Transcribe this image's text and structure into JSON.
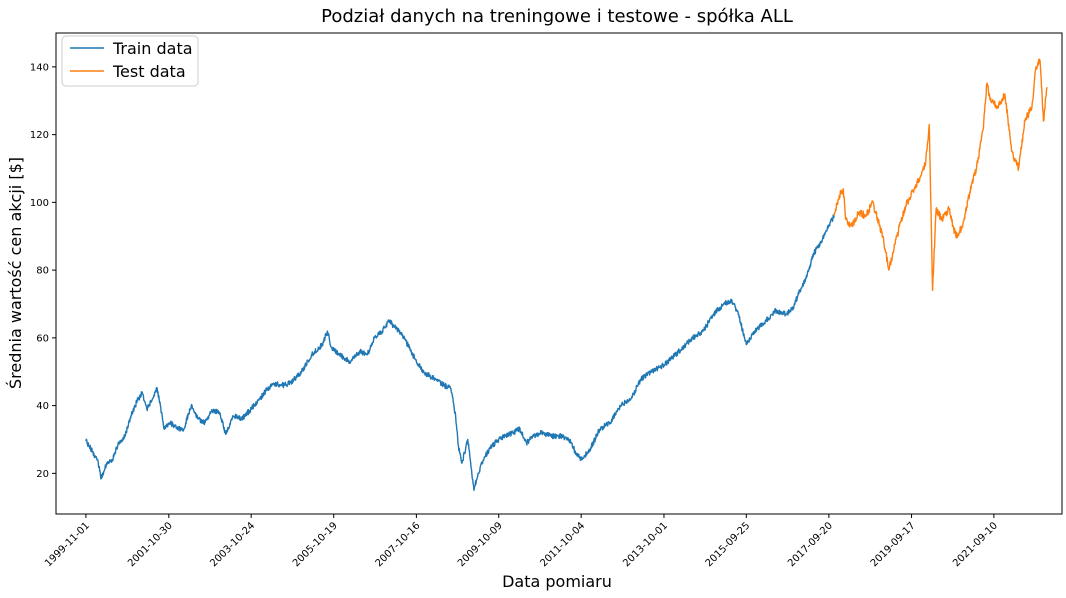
{
  "chart_data": {
    "type": "line",
    "title": "Podział danych na treningowe i testowe - spółka ALL",
    "xlabel": "Data pomiaru",
    "ylabel": "Średnia wartość cen akcji [$]",
    "x_ticks": [
      "1999-11-01",
      "2001-10-30",
      "2003-10-24",
      "2005-10-19",
      "2007-10-16",
      "2009-10-09",
      "2011-10-04",
      "2013-10-01",
      "2015-09-25",
      "2017-09-20",
      "2019-09-17",
      "2021-09-10"
    ],
    "y_ticks": [
      20,
      40,
      60,
      80,
      100,
      120,
      140
    ],
    "ylim": [
      8,
      150
    ],
    "xlim": [
      "1999-02-11",
      "2023-05-02"
    ],
    "grid": false,
    "legend_position": "top-left",
    "series": [
      {
        "name": "Train data",
        "color": "#1f77b4",
        "points": [
          [
            "1999-11-01",
            29.5
          ],
          [
            "1999-12-20",
            27.0
          ],
          [
            "2000-02-10",
            24.0
          ],
          [
            "2000-03-15",
            18.5
          ],
          [
            "2000-05-01",
            23.0
          ],
          [
            "2000-06-20",
            24.0
          ],
          [
            "2000-08-15",
            29.0
          ],
          [
            "2000-10-10",
            31.0
          ],
          [
            "2000-12-01",
            37.0
          ],
          [
            "2001-01-20",
            41.0
          ],
          [
            "2001-03-10",
            44.0
          ],
          [
            "2001-04-20",
            39.0
          ],
          [
            "2001-06-10",
            42.0
          ],
          [
            "2001-07-20",
            45.0
          ],
          [
            "2001-09-20",
            33.0
          ],
          [
            "2001-11-10",
            35.0
          ],
          [
            "2002-01-10",
            33.5
          ],
          [
            "2002-03-10",
            33.0
          ],
          [
            "2002-05-15",
            40.0
          ],
          [
            "2002-07-15",
            36.0
          ],
          [
            "2002-09-15",
            35.0
          ],
          [
            "2002-11-15",
            38.5
          ],
          [
            "2003-01-20",
            38.0
          ],
          [
            "2003-03-15",
            31.5
          ],
          [
            "2003-05-15",
            37.0
          ],
          [
            "2003-08-01",
            36.0
          ],
          [
            "2003-10-24",
            39.0
          ],
          [
            "2004-01-10",
            42.0
          ],
          [
            "2004-03-15",
            45.0
          ],
          [
            "2004-05-15",
            46.5
          ],
          [
            "2004-08-10",
            46.0
          ],
          [
            "2004-10-10",
            47.0
          ],
          [
            "2005-01-10",
            50.0
          ],
          [
            "2005-04-10",
            55.0
          ],
          [
            "2005-07-10",
            58.0
          ],
          [
            "2005-08-25",
            62.0
          ],
          [
            "2005-10-01",
            57.0
          ],
          [
            "2005-12-10",
            55.0
          ],
          [
            "2006-03-10",
            53.0
          ],
          [
            "2006-06-10",
            56.0
          ],
          [
            "2006-08-10",
            55.0
          ],
          [
            "2006-10-10",
            60.0
          ],
          [
            "2006-12-20",
            62.0
          ],
          [
            "2007-02-15",
            65.0
          ],
          [
            "2007-04-15",
            63.0
          ],
          [
            "2007-06-15",
            61.0
          ],
          [
            "2007-08-15",
            57.0
          ],
          [
            "2007-10-16",
            53.0
          ],
          [
            "2007-12-20",
            50.0
          ],
          [
            "2008-03-15",
            48.0
          ],
          [
            "2008-06-15",
            46.0
          ],
          [
            "2008-08-15",
            45.0
          ],
          [
            "2008-09-25",
            37.0
          ],
          [
            "2008-10-20",
            28.0
          ],
          [
            "2008-11-20",
            23.0
          ],
          [
            "2009-01-10",
            30.0
          ],
          [
            "2009-03-05",
            15.0
          ],
          [
            "2009-04-10",
            20.0
          ],
          [
            "2009-06-10",
            25.0
          ],
          [
            "2009-08-10",
            28.0
          ],
          [
            "2009-10-09",
            30.0
          ],
          [
            "2009-12-10",
            31.0
          ],
          [
            "2010-02-10",
            32.0
          ],
          [
            "2010-04-10",
            33.0
          ],
          [
            "2010-06-10",
            29.0
          ],
          [
            "2010-08-10",
            31.0
          ],
          [
            "2010-10-10",
            32.0
          ],
          [
            "2011-01-10",
            31.0
          ],
          [
            "2011-04-10",
            31.0
          ],
          [
            "2011-06-20",
            30.0
          ],
          [
            "2011-08-20",
            26.0
          ],
          [
            "2011-10-04",
            24.0
          ],
          [
            "2011-12-20",
            27.0
          ],
          [
            "2012-03-15",
            33.0
          ],
          [
            "2012-06-15",
            35.0
          ],
          [
            "2012-09-15",
            40.0
          ],
          [
            "2012-12-15",
            42.0
          ],
          [
            "2013-03-15",
            48.0
          ],
          [
            "2013-06-15",
            50.0
          ],
          [
            "2013-10-01",
            52.0
          ],
          [
            "2014-01-10",
            55.0
          ],
          [
            "2014-04-10",
            58.0
          ],
          [
            "2014-06-10",
            60.0
          ],
          [
            "2014-09-10",
            62.0
          ],
          [
            "2014-12-10",
            67.0
          ],
          [
            "2015-03-10",
            70.0
          ],
          [
            "2015-05-10",
            71.0
          ],
          [
            "2015-07-10",
            68.0
          ],
          [
            "2015-09-25",
            58.0
          ],
          [
            "2015-12-10",
            62.0
          ],
          [
            "2016-03-10",
            65.0
          ],
          [
            "2016-06-10",
            68.0
          ],
          [
            "2016-09-10",
            67.0
          ],
          [
            "2016-11-10",
            69.0
          ],
          [
            "2017-01-10",
            74.0
          ],
          [
            "2017-03-10",
            78.0
          ],
          [
            "2017-05-10",
            85.0
          ],
          [
            "2017-07-10",
            88.0
          ],
          [
            "2017-09-20",
            93.0
          ],
          [
            "2017-11-05",
            96.0
          ]
        ]
      },
      {
        "name": "Test data",
        "color": "#ff7f0e",
        "points": [
          [
            "2017-11-05",
            96.0
          ],
          [
            "2017-12-20",
            102.0
          ],
          [
            "2018-01-25",
            104.0
          ],
          [
            "2018-02-15",
            95.0
          ],
          [
            "2018-04-10",
            93.0
          ],
          [
            "2018-06-10",
            97.0
          ],
          [
            "2018-08-10",
            96.0
          ],
          [
            "2018-10-10",
            100.0
          ],
          [
            "2018-12-10",
            93.0
          ],
          [
            "2019-01-10",
            90.0
          ],
          [
            "2019-03-01",
            80.0
          ],
          [
            "2019-04-15",
            86.0
          ],
          [
            "2019-06-10",
            94.0
          ],
          [
            "2019-08-10",
            100.0
          ],
          [
            "2019-10-10",
            104.0
          ],
          [
            "2019-12-10",
            108.0
          ],
          [
            "2020-01-20",
            112.0
          ],
          [
            "2020-02-20",
            123.0
          ],
          [
            "2020-03-20",
            74.0
          ],
          [
            "2020-04-20",
            98.0
          ],
          [
            "2020-06-10",
            95.0
          ],
          [
            "2020-08-10",
            98.0
          ],
          [
            "2020-10-10",
            90.0
          ],
          [
            "2020-12-10",
            93.0
          ],
          [
            "2021-02-10",
            103.0
          ],
          [
            "2021-04-10",
            110.0
          ],
          [
            "2021-06-10",
            122.0
          ],
          [
            "2021-07-10",
            135.0
          ],
          [
            "2021-08-15",
            130.0
          ],
          [
            "2021-10-15",
            128.0
          ],
          [
            "2021-12-15",
            132.0
          ],
          [
            "2022-02-15",
            115.0
          ],
          [
            "2022-04-15",
            110.0
          ],
          [
            "2022-06-10",
            124.0
          ],
          [
            "2022-08-10",
            128.0
          ],
          [
            "2022-09-15",
            140.0
          ],
          [
            "2022-10-20",
            142.0
          ],
          [
            "2022-11-20",
            124.0
          ],
          [
            "2022-12-20",
            134.0
          ]
        ]
      }
    ]
  }
}
